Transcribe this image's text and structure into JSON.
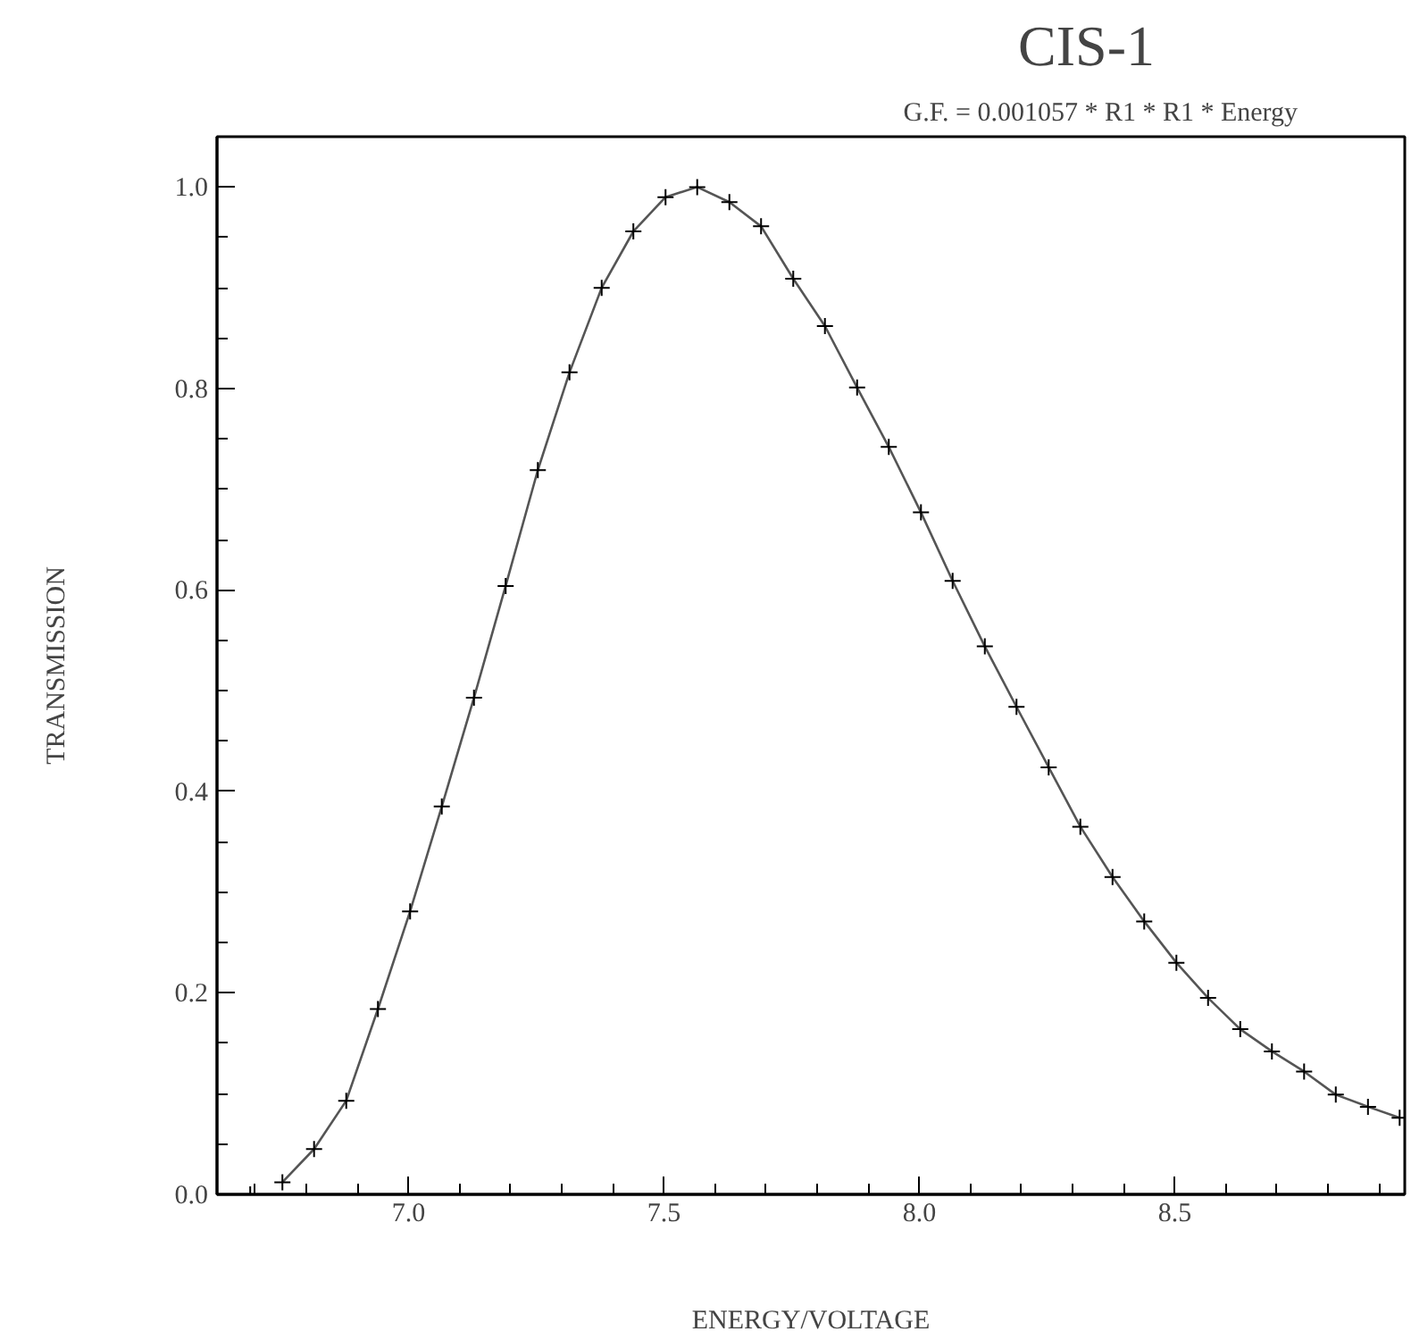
{
  "chart_data": {
    "type": "line",
    "title": "CIS-1",
    "subtitle": "G.F. = 0.001057 * R1 * R1 * Energy",
    "xlabel": "ENERGY/VOLTAGE",
    "ylabel": "TRANSMISSION",
    "xlim": [
      6.625,
      8.95
    ],
    "ylim": [
      0,
      1.05
    ],
    "xticks": [
      {
        "value": 7.0,
        "label": "7.0"
      },
      {
        "value": 7.5,
        "label": "7.5"
      },
      {
        "value": 8.0,
        "label": "8.0"
      },
      {
        "value": 8.5,
        "label": "8.5"
      }
    ],
    "yticks": [
      {
        "value": 0,
        "label": "0.0"
      },
      {
        "value": 0.2,
        "label": "0.2"
      },
      {
        "value": 0.4,
        "label": "0.4"
      },
      {
        "value": 0.6,
        "label": "0.6"
      },
      {
        "value": 0.8,
        "label": "0.8"
      },
      {
        "value": 1.0,
        "label": "1.0"
      }
    ],
    "grid": false,
    "marker": "cross",
    "line_style": "solid",
    "series": [
      {
        "type": "scatter",
        "color": "#000000",
        "x": [
          6.69
        ],
        "values": [
          0.0
        ]
      },
      {
        "color": "#000000",
        "x": [
          6.753,
          6.815,
          6.878,
          6.94,
          7.003,
          7.065,
          7.128,
          7.19,
          7.253,
          7.315,
          7.378,
          7.44,
          7.503,
          7.565,
          7.628,
          7.69,
          7.753,
          7.815,
          7.878,
          7.94,
          8.003,
          8.065,
          8.128,
          8.19,
          8.253,
          8.315,
          8.378,
          8.44,
          8.503,
          8.565,
          8.628,
          8.69,
          8.753,
          8.815,
          8.878,
          8.94
        ],
        "values": [
          0.012,
          0.045,
          0.093,
          0.184,
          0.281,
          0.385,
          0.493,
          0.604,
          0.719,
          0.816,
          0.9,
          0.956,
          0.99,
          1.0,
          0.985,
          0.961,
          0.909,
          0.862,
          0.801,
          0.742,
          0.677,
          0.609,
          0.544,
          0.484,
          0.424,
          0.365,
          0.315,
          0.271,
          0.23,
          0.195,
          0.164,
          0.142,
          0.122,
          0.099,
          0.087,
          0.076
        ]
      }
    ]
  }
}
